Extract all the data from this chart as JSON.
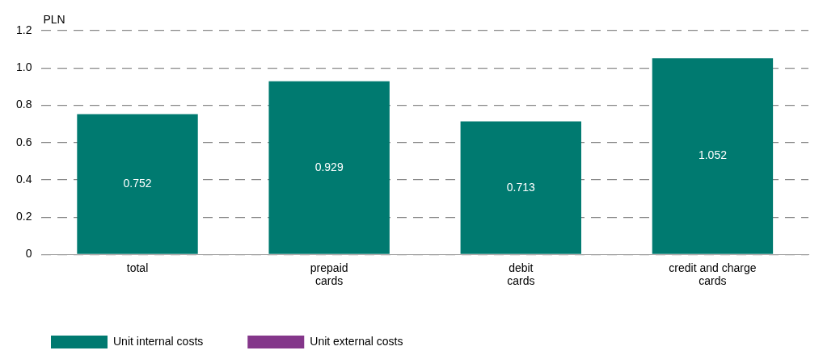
{
  "chart_data": {
    "type": "bar",
    "ylabel": "PLN",
    "categories": [
      "total",
      "prepaid cards",
      "debit cards",
      "credit and charge cards"
    ],
    "series": [
      {
        "name": "Unit internal costs",
        "color": "#007a70",
        "values": [
          0.752,
          0.929,
          0.713,
          1.052
        ]
      },
      {
        "name": "Unit external costs",
        "color": "#84368a",
        "values": [
          null,
          null,
          null,
          null
        ]
      }
    ],
    "stacked": true,
    "ylim": [
      0,
      1.2
    ],
    "yticks": [
      0,
      0.2,
      0.4,
      0.6,
      0.8,
      {
        "value": 1,
        "label": "1.0"
      },
      1.2
    ],
    "grid": "y",
    "legend": "bottom left",
    "data_labels": true
  }
}
